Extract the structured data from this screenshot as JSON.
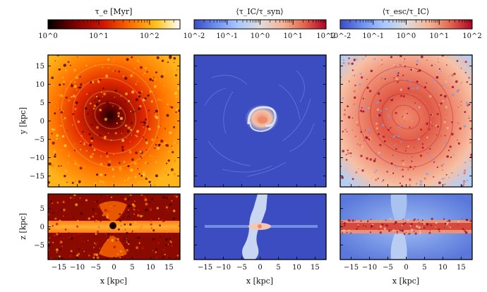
{
  "colorbars": [
    {
      "label": "τ_e [Myr]",
      "colors": [
        "#000000",
        "#7a0000",
        "#d21500",
        "#ff6a00",
        "#ffc21a",
        "#ffffff"
      ],
      "ticks": [
        "10^0",
        "10^1",
        "10^2"
      ],
      "decades": [
        0,
        1,
        2
      ],
      "range": [
        0,
        2.6
      ]
    },
    {
      "label": "⟨τ_IC/τ_syn⟩",
      "colors": [
        "#3a4cc0",
        "#6f91f2",
        "#aac7fd",
        "#dddcdc",
        "#f6b496",
        "#e26951",
        "#b40426"
      ],
      "ticks": [
        "10^-2",
        "10^-1",
        "10^0",
        "10^1",
        "10^2"
      ],
      "decades": [
        -2,
        -1,
        0,
        1,
        2
      ],
      "range": [
        -2,
        2
      ]
    },
    {
      "label": "⟨τ_esc/τ_IC⟩",
      "colors": [
        "#3a4cc0",
        "#6f91f2",
        "#aac7fd",
        "#dddcdc",
        "#f6b496",
        "#e26951",
        "#b40426"
      ],
      "ticks": [
        "10^-2",
        "10^-1",
        "10^0",
        "10^1",
        "10^2"
      ],
      "decades": [
        -2,
        -1,
        0,
        1,
        2
      ],
      "range": [
        -2,
        2
      ]
    }
  ],
  "axes": {
    "y_label": "y [kpc]",
    "z_label": "z [kpc]",
    "x_label": "x [kpc]",
    "y_ticks": [
      "15",
      "10",
      "5",
      "0",
      "−5",
      "−10",
      "−15"
    ],
    "y_values": [
      15,
      10,
      5,
      0,
      -5,
      -10,
      -15
    ],
    "y_range": [
      -18,
      18
    ],
    "z_ticks": [
      "5",
      "0",
      "−5"
    ],
    "z_values": [
      5,
      0,
      -5
    ],
    "z_range": [
      -9,
      9
    ],
    "x_ticks": [
      "−15",
      "−10",
      "−5",
      "0",
      "5",
      "10",
      "15"
    ],
    "x_values": [
      -15,
      -10,
      -5,
      0,
      5,
      10,
      15
    ],
    "x_range": [
      -18,
      18
    ]
  }
}
